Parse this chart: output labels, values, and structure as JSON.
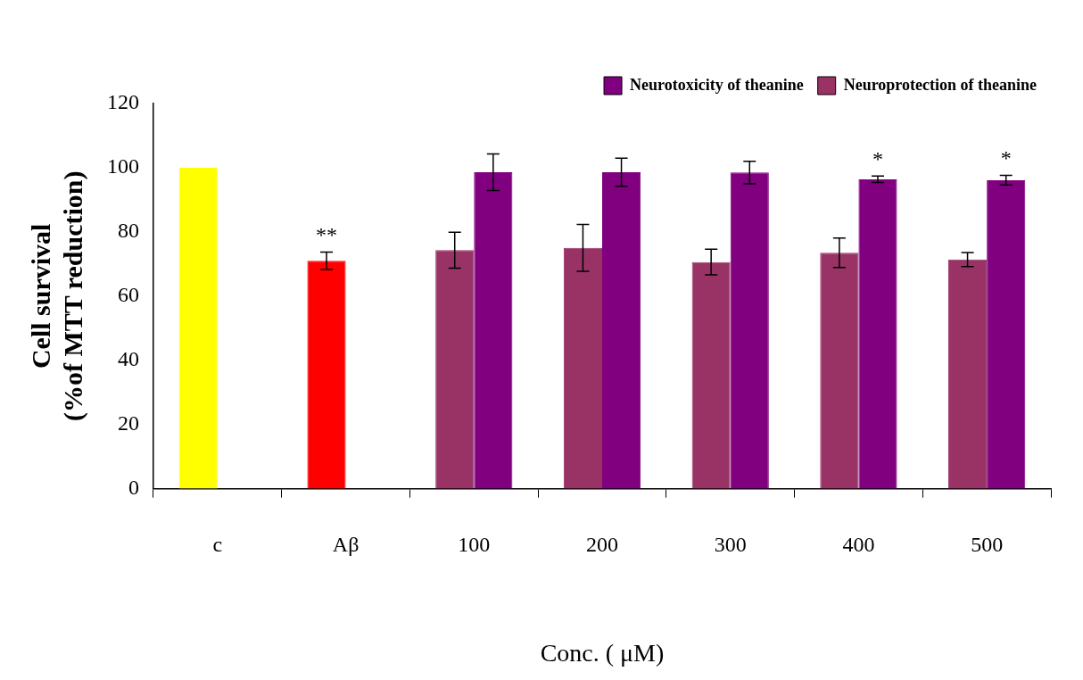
{
  "chart_data": {
    "type": "bar",
    "xlabel": "Conc. ( μM)",
    "ylabel": "Cell survival\n(%of MTT reduction)",
    "categories": [
      "c",
      "Aβ",
      "100",
      "200",
      "300",
      "400",
      "500"
    ],
    "series": [
      {
        "name": "Neuroprotection of theanine",
        "color": "#993366",
        "colors": [
          "#ffff00",
          "#ff0000",
          "#993366",
          "#993366",
          "#993366",
          "#993366",
          "#993366"
        ],
        "values": [
          100,
          71,
          74.3,
          75,
          70.6,
          73.5,
          71.4
        ],
        "errors": [
          null,
          2.7,
          5.6,
          7.3,
          4,
          4.6,
          2.2
        ]
      },
      {
        "name": "Neurotoxicity of theanine",
        "color": "#800080",
        "values": [
          null,
          null,
          98.6,
          98.6,
          98.5,
          96.4,
          96.1
        ],
        "errors": [
          null,
          null,
          5.7,
          4.4,
          3.5,
          1,
          1.5
        ]
      }
    ],
    "ylim": [
      0,
      120
    ],
    "yticks": [
      0,
      20,
      40,
      60,
      80,
      100,
      120
    ],
    "grid": false,
    "legend": "top right",
    "annotations": [
      {
        "text": "**",
        "x": "Aβ",
        "y": 71
      },
      {
        "text": "*",
        "x": "400",
        "y": 96.4
      },
      {
        "text": "*",
        "x": "500",
        "y": 96.1
      }
    ]
  }
}
